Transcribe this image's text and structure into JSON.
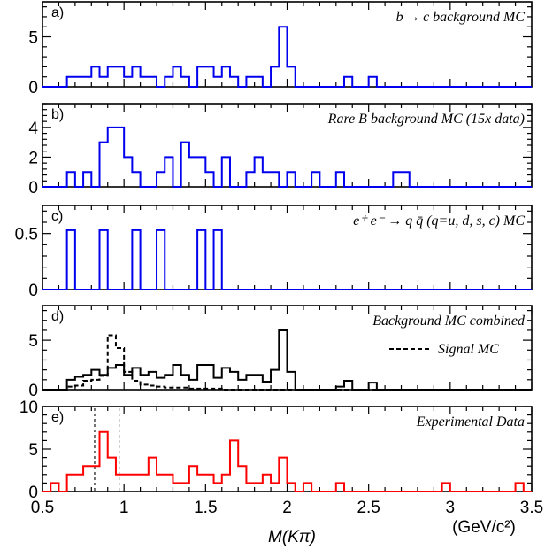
{
  "chart_data": [
    {
      "type": "step",
      "panel_tag": "a)",
      "title": "b → c background MC",
      "ylim": [
        0,
        8.5
      ],
      "yticks": [
        0,
        5
      ],
      "bin_edges_start": 0.5,
      "bin_width": 0.05,
      "series": [
        {
          "color": "#0000ee",
          "style": "solid",
          "values": [
            0,
            0,
            0,
            1,
            1,
            1,
            2,
            1,
            2,
            2,
            1,
            2,
            1,
            1,
            0,
            1,
            2,
            1,
            0,
            2,
            2,
            1,
            2,
            1,
            0,
            1,
            1,
            0,
            2,
            6,
            2,
            0,
            0,
            0,
            0,
            0,
            0,
            1,
            0,
            0,
            1,
            0,
            0,
            0,
            0,
            0,
            0,
            0,
            0,
            0,
            0,
            0,
            0,
            0,
            0,
            0,
            0,
            0,
            0,
            0
          ]
        }
      ]
    },
    {
      "type": "step",
      "panel_tag": "b)",
      "title": "Rare B background MC (15x data)",
      "ylim": [
        0,
        5.6
      ],
      "yticks": [
        0,
        2,
        4
      ],
      "bin_edges_start": 0.5,
      "bin_width": 0.05,
      "series": [
        {
          "color": "#0000ee",
          "style": "solid",
          "values": [
            0,
            0,
            0,
            1,
            0,
            1,
            0,
            3,
            4,
            4,
            2,
            1,
            0,
            0,
            1,
            2,
            0,
            3,
            2,
            2,
            1,
            0,
            2,
            0,
            0,
            1,
            2,
            1,
            1,
            0,
            1,
            0,
            0,
            1,
            0,
            0,
            1,
            0,
            0,
            0,
            0,
            0,
            0,
            1,
            1,
            0,
            0,
            0,
            0,
            0,
            0,
            0,
            0,
            0,
            0,
            0,
            0,
            0,
            0,
            0
          ]
        }
      ]
    },
    {
      "type": "step",
      "panel_tag": "c)",
      "title": "e⁺ e⁻ → q q̄ (q=u, d, s, c) MC",
      "ylim": [
        0,
        0.75
      ],
      "yticks": [
        0,
        0.5
      ],
      "ytick_labels": [
        "0",
        "0.5"
      ],
      "bin_edges_start": 0.5,
      "bin_width": 0.05,
      "series": [
        {
          "color": "#0000ee",
          "style": "solid",
          "values": [
            0,
            0,
            0,
            0.53,
            0,
            0,
            0,
            0.53,
            0,
            0,
            0,
            0.53,
            0,
            0,
            0.53,
            0,
            0,
            0,
            0,
            0.53,
            0,
            0.53,
            0,
            0,
            0,
            0,
            0,
            0,
            0,
            0,
            0,
            0,
            0,
            0,
            0,
            0,
            0,
            0,
            0,
            0,
            0,
            0,
            0,
            0,
            0,
            0,
            0,
            0,
            0,
            0,
            0,
            0,
            0,
            0,
            0,
            0,
            0,
            0,
            0,
            0
          ]
        }
      ]
    },
    {
      "type": "step",
      "panel_tag": "d)",
      "title": "Background MC combined",
      "legend_label": "Signal MC",
      "ylim": [
        0,
        8.5
      ],
      "yticks": [
        0,
        5
      ],
      "bin_edges_start": 0.5,
      "bin_width": 0.05,
      "series": [
        {
          "color": "#000000",
          "style": "solid",
          "values": [
            0,
            0,
            0,
            1,
            1.3,
            1.5,
            2,
            1.5,
            2.2,
            2.5,
            1.5,
            2.2,
            1.5,
            1.8,
            1.2,
            1.5,
            2.5,
            1.5,
            1,
            2.5,
            2.5,
            1.2,
            2.2,
            1.8,
            1,
            1.5,
            1.5,
            0.8,
            2,
            6,
            1.8,
            0,
            0,
            0,
            0,
            0,
            0.3,
            0.9,
            0,
            0,
            0.7,
            0,
            0,
            0,
            0,
            0,
            0,
            0,
            0,
            0,
            0,
            0,
            0,
            0,
            0,
            0,
            0,
            0,
            0,
            0
          ]
        },
        {
          "color": "#000000",
          "style": "dashed",
          "values": [
            0,
            0,
            0,
            0.3,
            0.4,
            0.9,
            1,
            1.4,
            5.5,
            4.2,
            1.8,
            0.9,
            0.5,
            0.4,
            0.3,
            0.2,
            0.2,
            0.2,
            0.1,
            0.1,
            0.1,
            0.1,
            0,
            0,
            0,
            0,
            0,
            0,
            0,
            0,
            0,
            0,
            0,
            0,
            0,
            0,
            0,
            0,
            0,
            0,
            0,
            0,
            0,
            0,
            0,
            0,
            0,
            0,
            0,
            0,
            0,
            0,
            0,
            0,
            0,
            0,
            0,
            0,
            0,
            0
          ]
        }
      ]
    },
    {
      "type": "step",
      "panel_tag": "e)",
      "title": "Experimental Data",
      "ylim": [
        0,
        10
      ],
      "yticks": [
        0,
        5,
        10
      ],
      "vlines": [
        0.82,
        0.97
      ],
      "bin_edges_start": 0.5,
      "bin_width": 0.05,
      "series": [
        {
          "color": "#ff0000",
          "style": "solid",
          "values": [
            0,
            1,
            0,
            2,
            2,
            3,
            3,
            7,
            4,
            2,
            2,
            2,
            2,
            4,
            2,
            2,
            1,
            1,
            3,
            2,
            2,
            1,
            2,
            6,
            3,
            1,
            1,
            2,
            1,
            4,
            1,
            0,
            1,
            0,
            0,
            0,
            1,
            0,
            0,
            0,
            0,
            0,
            0,
            0,
            0,
            0,
            0,
            0,
            0,
            1,
            0,
            0,
            0,
            0,
            0,
            0,
            0,
            0,
            1,
            0
          ]
        }
      ]
    }
  ],
  "xaxis": {
    "xlim": [
      0.5,
      3.5
    ],
    "ticks": [
      0.5,
      1,
      1.5,
      2,
      2.5,
      3,
      3.5
    ],
    "tick_labels": [
      "0.5",
      "1",
      "1.5",
      "2",
      "2.5",
      "3",
      "3.5"
    ],
    "label": "M(Kπ)",
    "unit_label": "(GeV/c²)"
  }
}
